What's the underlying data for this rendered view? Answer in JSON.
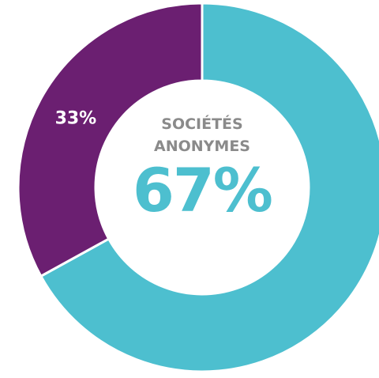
{
  "chart_data": {
    "type": "pie",
    "donut": true,
    "categories": [
      "SOCIÉTÉS ANONYMES",
      null
    ],
    "values": [
      67,
      33
    ],
    "value_labels": [
      "67%",
      "33%"
    ],
    "colors": [
      "#4dbfcf",
      "#6b1f71"
    ]
  }
}
